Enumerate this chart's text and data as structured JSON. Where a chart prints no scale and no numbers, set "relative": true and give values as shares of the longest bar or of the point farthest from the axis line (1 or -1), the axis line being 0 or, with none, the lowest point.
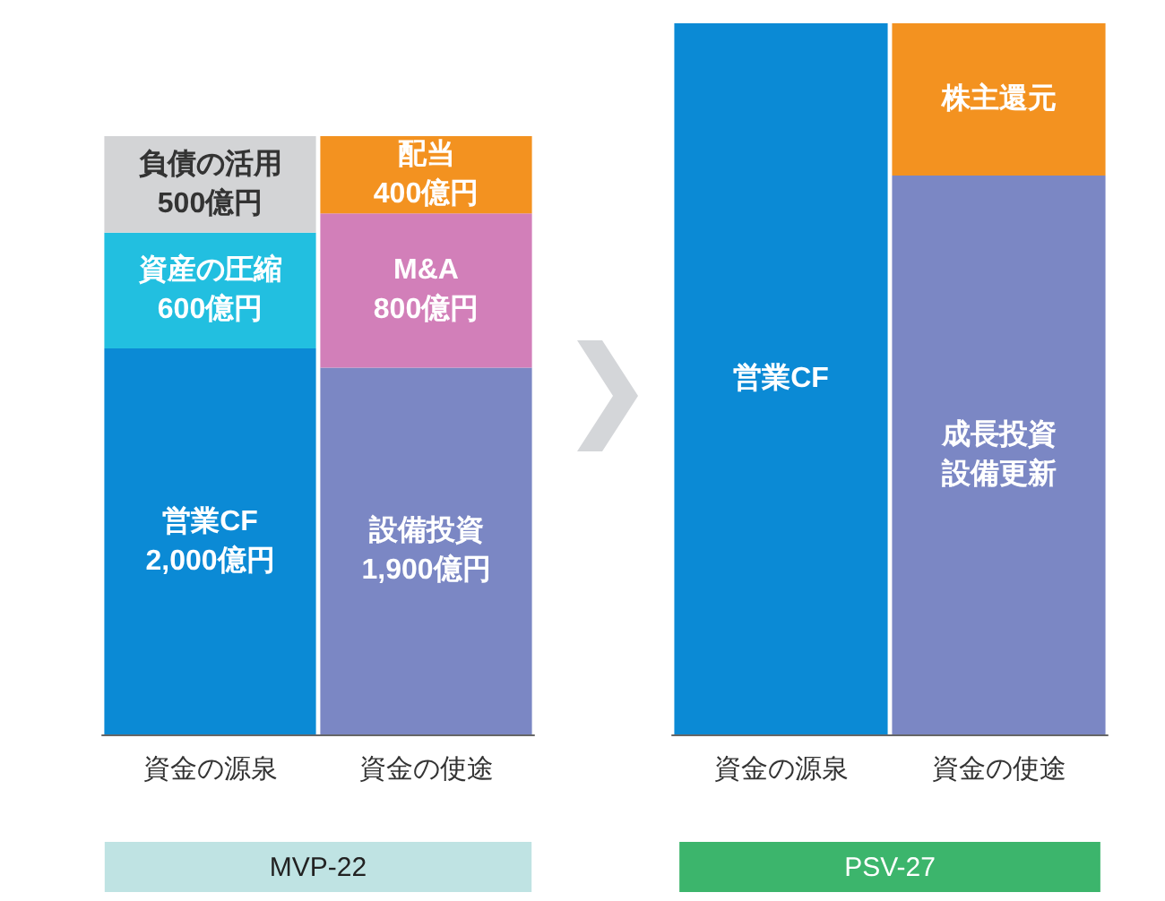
{
  "chart_data": [
    {
      "type": "bar",
      "stacked": true,
      "xlabel": "MVP-22",
      "categories": [
        "資金の源泉",
        "資金の使途"
      ],
      "legend": false,
      "series": [
        {
          "name": "営業CF",
          "color": "#0b8ad5",
          "values": [
            2000,
            null
          ],
          "value_labels": [
            "2,000億円",
            null
          ]
        },
        {
          "name": "資産の圧縮",
          "color": "#22bfe0",
          "values": [
            600,
            null
          ],
          "value_labels": [
            "600億円",
            null
          ]
        },
        {
          "name": "負債の活用",
          "color": "#d3d4d6",
          "values": [
            500,
            null
          ],
          "value_labels": [
            "500億円",
            null
          ]
        },
        {
          "name": "設備投資",
          "color": "#7b87c4",
          "values": [
            null,
            1900
          ],
          "value_labels": [
            null,
            "1,900億円"
          ]
        },
        {
          "name": "M&A",
          "color": "#d27fb9",
          "values": [
            null,
            800
          ],
          "value_labels": [
            null,
            "800億円"
          ]
        },
        {
          "name": "配当",
          "color": "#f39220",
          "values": [
            null,
            400
          ],
          "value_labels": [
            null,
            "400億円"
          ]
        }
      ]
    },
    {
      "type": "bar",
      "stacked": true,
      "relative": true,
      "xlabel": "PSV-27",
      "categories": [
        "資金の源泉",
        "資金の使途"
      ],
      "legend": false,
      "series": [
        {
          "name": "営業CF",
          "color": "#0b8ad5",
          "values": [
            1,
            null
          ]
        },
        {
          "name": "成長投資設備更新",
          "color": "#7b87c4",
          "values": [
            null,
            0.786
          ]
        },
        {
          "name": "株主還元",
          "color": "#f39220",
          "values": [
            null,
            0.214
          ]
        }
      ]
    }
  ]
}
